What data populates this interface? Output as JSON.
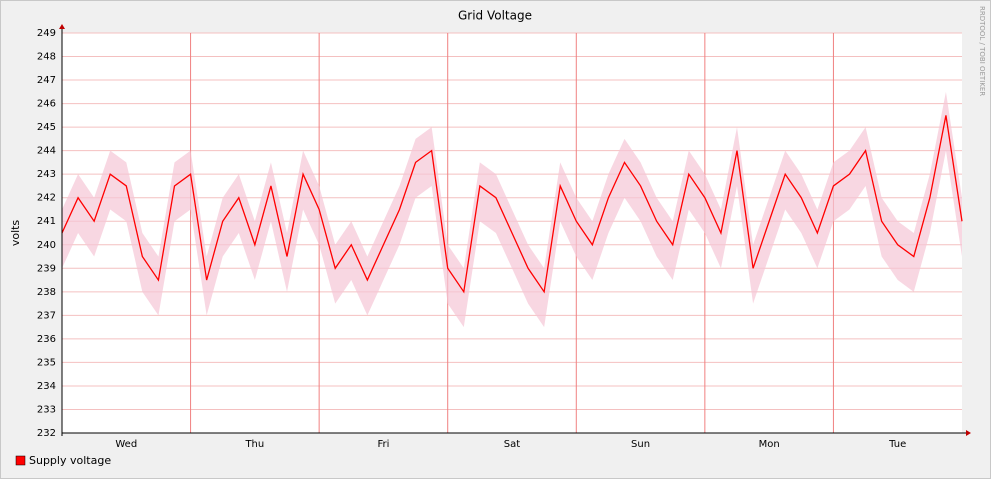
{
  "chart_data": {
    "type": "line",
    "title": "Grid Voltage",
    "ylabel": "volts",
    "watermark": "RRDTOOL / TOBI OETIKER",
    "xlim": [
      0,
      7
    ],
    "xticks": [
      {
        "value": 0.5,
        "label": "Wed"
      },
      {
        "value": 1.5,
        "label": "Thu"
      },
      {
        "value": 2.5,
        "label": "Fri"
      },
      {
        "value": 3.5,
        "label": "Sat"
      },
      {
        "value": 4.5,
        "label": "Sun"
      },
      {
        "value": 5.5,
        "label": "Mon"
      },
      {
        "value": 6.5,
        "label": "Tue"
      }
    ],
    "xgrid_major": [
      1,
      2,
      3,
      4,
      5,
      6
    ],
    "ylim": [
      232,
      249
    ],
    "yticks": [
      232,
      233,
      234,
      235,
      236,
      237,
      238,
      239,
      240,
      241,
      242,
      243,
      244,
      245,
      246,
      247,
      248,
      249
    ],
    "grid": true,
    "x": [
      0,
      0.125,
      0.25,
      0.375,
      0.5,
      0.625,
      0.75,
      0.875,
      1,
      1.125,
      1.25,
      1.375,
      1.5,
      1.625,
      1.75,
      1.875,
      2,
      2.125,
      2.25,
      2.375,
      2.5,
      2.625,
      2.75,
      2.875,
      3,
      3.125,
      3.25,
      3.375,
      3.5,
      3.625,
      3.75,
      3.875,
      4,
      4.125,
      4.25,
      4.375,
      4.5,
      4.625,
      4.75,
      4.875,
      5,
      5.125,
      5.25,
      5.375,
      5.5,
      5.625,
      5.75,
      5.875,
      6,
      6.125,
      6.25,
      6.375,
      6.5,
      6.625,
      6.75,
      6.875,
      7
    ],
    "series": [
      {
        "name": "Supply voltage",
        "color": "#ff0000",
        "values": [
          240.5,
          242,
          241,
          243,
          242.5,
          239.5,
          238.5,
          242.5,
          243,
          238.5,
          241,
          242,
          240,
          242.5,
          239.5,
          243,
          241.5,
          239,
          240,
          238.5,
          240,
          241.5,
          243.5,
          244,
          239,
          238,
          242.5,
          242,
          240.5,
          239,
          238,
          242.5,
          241,
          240,
          242,
          243.5,
          242.5,
          241,
          240,
          243,
          242,
          240.5,
          244,
          239,
          241,
          243,
          242,
          240.5,
          242.5,
          243,
          244,
          241,
          240,
          239.5,
          242,
          245.5,
          241
        ]
      }
    ],
    "band": {
      "color": "#f5c6d6",
      "upper": [
        241.5,
        243,
        242,
        244,
        243.5,
        240.5,
        239.5,
        243.5,
        244,
        239.5,
        242,
        243,
        241,
        243.5,
        240.5,
        244,
        242.5,
        240,
        241,
        239.5,
        241,
        242.5,
        244.5,
        245,
        240,
        239,
        243.5,
        243,
        241.5,
        240,
        239,
        243.5,
        242,
        241,
        243,
        244.5,
        243.5,
        242,
        241,
        244,
        243,
        241.5,
        245,
        240,
        242,
        244,
        243,
        241.5,
        243.5,
        244,
        245,
        242,
        241,
        240.5,
        243,
        246.5,
        242
      ],
      "lower": [
        239,
        240.5,
        239.5,
        241.5,
        241,
        238,
        237,
        241,
        241.5,
        237,
        239.5,
        240.5,
        238.5,
        241,
        238,
        241.5,
        240,
        237.5,
        238.5,
        237,
        238.5,
        240,
        242,
        242.5,
        237.5,
        236.5,
        241,
        240.5,
        239,
        237.5,
        236.5,
        241,
        239.5,
        238.5,
        240.5,
        242,
        241,
        239.5,
        238.5,
        241.5,
        240.5,
        239,
        242.5,
        237.5,
        239.5,
        241.5,
        240.5,
        239,
        241,
        241.5,
        242.5,
        239.5,
        238.5,
        238,
        240.5,
        244,
        239.5
      ]
    }
  }
}
